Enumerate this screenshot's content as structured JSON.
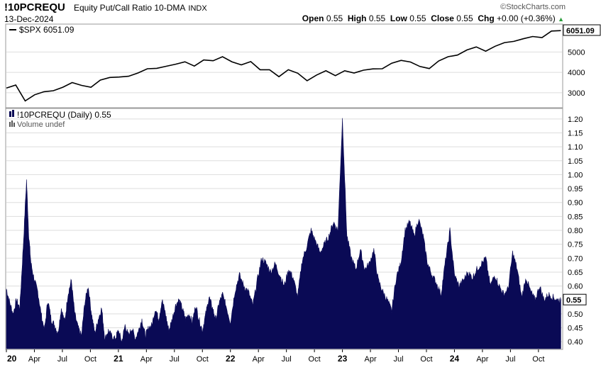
{
  "header": {
    "symbol": "!10PCREQU",
    "description": "Equity Put/Call Ratio 10-DMA",
    "exchange": "INDX",
    "date": "13-Dec-2024",
    "brand": "©StockCharts.com",
    "open_label": "Open",
    "open": "0.55",
    "high_label": "High",
    "high": "0.55",
    "low_label": "Low",
    "low": "0.55",
    "close_label": "Close",
    "close": "0.55",
    "chg_label": "Chg",
    "chg": "+0.00 (+0.36%)"
  },
  "colors": {
    "ratio_fill": "#0a0a55",
    "spx_line": "#000000",
    "grid": "#dddddd"
  },
  "chart_data": [
    {
      "type": "line",
      "legend": "$SPX 6051.09",
      "last_value_label": "6051.09",
      "ylim": [
        2300,
        6300
      ],
      "yticks": [
        3000,
        4000,
        5000
      ],
      "x": [
        "2020-01",
        "2020-02",
        "2020-03",
        "2020-04",
        "2020-05",
        "2020-06",
        "2020-07",
        "2020-08",
        "2020-09",
        "2020-10",
        "2020-11",
        "2020-12",
        "2021-01",
        "2021-02",
        "2021-03",
        "2021-04",
        "2021-05",
        "2021-06",
        "2021-07",
        "2021-08",
        "2021-09",
        "2021-10",
        "2021-11",
        "2021-12",
        "2022-01",
        "2022-02",
        "2022-03",
        "2022-04",
        "2022-05",
        "2022-06",
        "2022-07",
        "2022-08",
        "2022-09",
        "2022-10",
        "2022-11",
        "2022-12",
        "2023-01",
        "2023-02",
        "2023-03",
        "2023-04",
        "2023-05",
        "2023-06",
        "2023-07",
        "2023-08",
        "2023-09",
        "2023-10",
        "2023-11",
        "2023-12",
        "2024-01",
        "2024-02",
        "2024-03",
        "2024-04",
        "2024-05",
        "2024-06",
        "2024-07",
        "2024-08",
        "2024-09",
        "2024-10",
        "2024-11",
        "2024-12"
      ],
      "values": [
        3230,
        3380,
        2600,
        2900,
        3050,
        3100,
        3270,
        3500,
        3360,
        3270,
        3620,
        3750,
        3770,
        3810,
        3970,
        4180,
        4200,
        4300,
        4400,
        4520,
        4310,
        4610,
        4570,
        4770,
        4520,
        4370,
        4530,
        4130,
        4130,
        3790,
        4130,
        3960,
        3590,
        3870,
        4080,
        3840,
        4080,
        3970,
        4110,
        4170,
        4180,
        4450,
        4590,
        4510,
        4290,
        4190,
        4560,
        4770,
        4850,
        5100,
        5250,
        5040,
        5280,
        5460,
        5520,
        5650,
        5760,
        5710,
        6030,
        6051
      ]
    },
    {
      "type": "area",
      "legend": "!10PCREQU (Daily) 0.55",
      "volume_legend": "Volume undef",
      "last_value_label": "0.55",
      "ylim": [
        0.375,
        1.225
      ],
      "yticks": [
        0.4,
        0.45,
        0.5,
        0.55,
        0.6,
        0.65,
        0.7,
        0.75,
        0.8,
        0.85,
        0.9,
        0.95,
        1.0,
        1.05,
        1.1,
        1.15,
        1.2
      ],
      "ytick_labels": [
        "0.40",
        "0.45",
        "0.50",
        "0.55",
        "0.60",
        "0.65",
        "0.70",
        "0.75",
        "0.80",
        "0.85",
        "0.90",
        "0.95",
        "1.00",
        "1.05",
        "1.10",
        "1.15",
        "1.20"
      ],
      "x_labels": [
        {
          "t": 0.0,
          "text": "20",
          "bold": true
        },
        {
          "t": 0.25,
          "text": "Apr"
        },
        {
          "t": 0.5,
          "text": "Jul"
        },
        {
          "t": 0.75,
          "text": "Oct"
        },
        {
          "t": 1.0,
          "text": "21",
          "bold": true
        },
        {
          "t": 1.25,
          "text": "Apr"
        },
        {
          "t": 1.5,
          "text": "Jul"
        },
        {
          "t": 1.75,
          "text": "Oct"
        },
        {
          "t": 2.0,
          "text": "22",
          "bold": true
        },
        {
          "t": 2.25,
          "text": "Apr"
        },
        {
          "t": 2.5,
          "text": "Jul"
        },
        {
          "t": 2.75,
          "text": "Oct"
        },
        {
          "t": 3.0,
          "text": "23",
          "bold": true
        },
        {
          "t": 3.25,
          "text": "Apr"
        },
        {
          "t": 3.5,
          "text": "Jul"
        },
        {
          "t": 3.75,
          "text": "Oct"
        },
        {
          "t": 4.0,
          "text": "24",
          "bold": true
        },
        {
          "t": 4.25,
          "text": "Apr"
        },
        {
          "t": 4.5,
          "text": "Jul"
        },
        {
          "t": 4.75,
          "text": "Oct"
        }
      ],
      "x": [
        0.0,
        0.03,
        0.06,
        0.09,
        0.12,
        0.15,
        0.18,
        0.2,
        0.22,
        0.25,
        0.28,
        0.31,
        0.34,
        0.37,
        0.4,
        0.43,
        0.46,
        0.49,
        0.52,
        0.55,
        0.58,
        0.61,
        0.64,
        0.67,
        0.7,
        0.73,
        0.76,
        0.79,
        0.82,
        0.85,
        0.88,
        0.91,
        0.94,
        0.97,
        1.0,
        1.03,
        1.06,
        1.09,
        1.12,
        1.15,
        1.18,
        1.21,
        1.24,
        1.27,
        1.3,
        1.33,
        1.36,
        1.39,
        1.42,
        1.45,
        1.48,
        1.51,
        1.54,
        1.57,
        1.6,
        1.63,
        1.66,
        1.69,
        1.72,
        1.75,
        1.78,
        1.81,
        1.84,
        1.87,
        1.9,
        1.93,
        1.96,
        2.0,
        2.04,
        2.08,
        2.12,
        2.16,
        2.2,
        2.24,
        2.28,
        2.32,
        2.36,
        2.4,
        2.44,
        2.48,
        2.52,
        2.56,
        2.6,
        2.64,
        2.68,
        2.72,
        2.76,
        2.8,
        2.84,
        2.88,
        2.92,
        2.96,
        3.0,
        3.04,
        3.08,
        3.12,
        3.16,
        3.2,
        3.24,
        3.28,
        3.32,
        3.36,
        3.4,
        3.44,
        3.48,
        3.52,
        3.56,
        3.6,
        3.64,
        3.68,
        3.72,
        3.76,
        3.8,
        3.84,
        3.88,
        3.92,
        3.96,
        4.0,
        4.04,
        4.08,
        4.12,
        4.16,
        4.2,
        4.24,
        4.28,
        4.32,
        4.36,
        4.4,
        4.44,
        4.48,
        4.52,
        4.56,
        4.6,
        4.64,
        4.68,
        4.72,
        4.76,
        4.8,
        4.84,
        4.88,
        4.92,
        4.95
      ],
      "values": [
        0.59,
        0.54,
        0.5,
        0.55,
        0.52,
        0.74,
        0.98,
        0.78,
        0.68,
        0.62,
        0.58,
        0.5,
        0.44,
        0.55,
        0.48,
        0.46,
        0.43,
        0.52,
        0.47,
        0.57,
        0.62,
        0.5,
        0.45,
        0.42,
        0.54,
        0.6,
        0.5,
        0.43,
        0.48,
        0.52,
        0.41,
        0.44,
        0.42,
        0.41,
        0.44,
        0.4,
        0.46,
        0.42,
        0.45,
        0.41,
        0.44,
        0.48,
        0.42,
        0.45,
        0.46,
        0.52,
        0.48,
        0.55,
        0.5,
        0.44,
        0.48,
        0.53,
        0.55,
        0.52,
        0.48,
        0.5,
        0.47,
        0.53,
        0.48,
        0.44,
        0.5,
        0.56,
        0.52,
        0.48,
        0.54,
        0.57,
        0.53,
        0.47,
        0.58,
        0.64,
        0.6,
        0.58,
        0.53,
        0.62,
        0.7,
        0.68,
        0.65,
        0.68,
        0.64,
        0.6,
        0.66,
        0.63,
        0.56,
        0.69,
        0.74,
        0.8,
        0.76,
        0.72,
        0.75,
        0.78,
        0.83,
        0.8,
        1.2,
        0.78,
        0.7,
        0.66,
        0.73,
        0.66,
        0.68,
        0.73,
        0.62,
        0.58,
        0.55,
        0.51,
        0.63,
        0.68,
        0.8,
        0.83,
        0.78,
        0.84,
        0.78,
        0.68,
        0.64,
        0.61,
        0.57,
        0.69,
        0.8,
        0.64,
        0.6,
        0.62,
        0.65,
        0.63,
        0.66,
        0.68,
        0.7,
        0.6,
        0.64,
        0.6,
        0.57,
        0.59,
        0.72,
        0.66,
        0.56,
        0.63,
        0.58,
        0.55,
        0.6,
        0.55,
        0.57,
        0.56,
        0.55,
        0.55
      ]
    }
  ]
}
